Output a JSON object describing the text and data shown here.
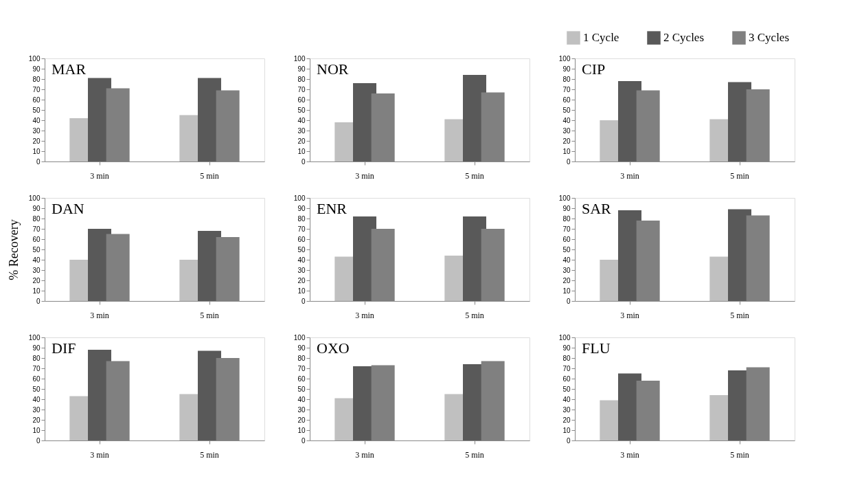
{
  "chart_data": [
    {
      "type": "bar",
      "title": "MAR",
      "categories": [
        "3 min",
        "5 min"
      ],
      "ylim": [
        0,
        100
      ],
      "yticks": [
        0,
        10,
        20,
        30,
        40,
        50,
        60,
        70,
        80,
        90,
        100
      ],
      "grid": false,
      "legend": "top right",
      "series": [
        {
          "name": "1 Cycle",
          "color": "#c0c0c0",
          "values": [
            42,
            45
          ]
        },
        {
          "name": "2 Cycles",
          "color": "#595959",
          "values": [
            81,
            81
          ]
        },
        {
          "name": "3 Cycles",
          "color": "#808080",
          "values": [
            71,
            69
          ]
        }
      ]
    },
    {
      "type": "bar",
      "title": "NOR",
      "categories": [
        "3 min",
        "5 min"
      ],
      "ylim": [
        0,
        100
      ],
      "yticks": [
        0,
        10,
        20,
        30,
        40,
        50,
        60,
        70,
        80,
        90,
        100
      ],
      "grid": false,
      "series": [
        {
          "color": "#c0c0c0",
          "values": [
            38,
            41
          ]
        },
        {
          "color": "#595959",
          "values": [
            76,
            84
          ]
        },
        {
          "color": "#808080",
          "values": [
            66,
            67
          ]
        }
      ]
    },
    {
      "type": "bar",
      "title": "CIP",
      "categories": [
        "3 min",
        "5 min"
      ],
      "ylim": [
        0,
        100
      ],
      "yticks": [
        0,
        10,
        20,
        30,
        40,
        50,
        60,
        70,
        80,
        90,
        100
      ],
      "grid": false,
      "series": [
        {
          "color": "#c0c0c0",
          "values": [
            40,
            41
          ]
        },
        {
          "color": "#595959",
          "values": [
            78,
            77
          ]
        },
        {
          "color": "#808080",
          "values": [
            69,
            70
          ]
        }
      ]
    },
    {
      "type": "bar",
      "title": "DAN",
      "ylabel": "% Recovery",
      "categories": [
        "3 min",
        "5 min"
      ],
      "ylim": [
        0,
        100
      ],
      "yticks": [
        0,
        10,
        20,
        30,
        40,
        50,
        60,
        70,
        80,
        90,
        100
      ],
      "grid": false,
      "series": [
        {
          "color": "#c0c0c0",
          "values": [
            40,
            40
          ]
        },
        {
          "color": "#595959",
          "values": [
            70,
            68
          ]
        },
        {
          "color": "#808080",
          "values": [
            65,
            62
          ]
        }
      ]
    },
    {
      "type": "bar",
      "title": "ENR",
      "categories": [
        "3 min",
        "5 min"
      ],
      "ylim": [
        0,
        100
      ],
      "yticks": [
        0,
        10,
        20,
        30,
        40,
        50,
        60,
        70,
        80,
        90,
        100
      ],
      "grid": false,
      "series": [
        {
          "color": "#c0c0c0",
          "values": [
            43,
            44
          ]
        },
        {
          "color": "#595959",
          "values": [
            82,
            82
          ]
        },
        {
          "color": "#808080",
          "values": [
            70,
            70
          ]
        }
      ]
    },
    {
      "type": "bar",
      "title": "SAR",
      "categories": [
        "3 min",
        "5 min"
      ],
      "ylim": [
        0,
        100
      ],
      "yticks": [
        0,
        10,
        20,
        30,
        40,
        50,
        60,
        70,
        80,
        90,
        100
      ],
      "grid": false,
      "series": [
        {
          "color": "#c0c0c0",
          "values": [
            40,
            43
          ]
        },
        {
          "color": "#595959",
          "values": [
            88,
            89
          ]
        },
        {
          "color": "#808080",
          "values": [
            78,
            83
          ]
        }
      ]
    },
    {
      "type": "bar",
      "title": "DIF",
      "categories": [
        "3 min",
        "5 min"
      ],
      "ylim": [
        0,
        100
      ],
      "yticks": [
        0,
        10,
        20,
        30,
        40,
        50,
        60,
        70,
        80,
        90,
        100
      ],
      "grid": false,
      "series": [
        {
          "color": "#c0c0c0",
          "values": [
            43,
            45
          ]
        },
        {
          "color": "#595959",
          "values": [
            88,
            87
          ]
        },
        {
          "color": "#808080",
          "values": [
            77,
            80
          ]
        }
      ]
    },
    {
      "type": "bar",
      "title": "OXO",
      "categories": [
        "3 min",
        "5 min"
      ],
      "ylim": [
        0,
        100
      ],
      "yticks": [
        0,
        10,
        20,
        30,
        40,
        50,
        60,
        70,
        80,
        90,
        100
      ],
      "grid": false,
      "series": [
        {
          "color": "#c0c0c0",
          "values": [
            41,
            45
          ]
        },
        {
          "color": "#595959",
          "values": [
            72,
            74
          ]
        },
        {
          "color": "#808080",
          "values": [
            73,
            77
          ]
        }
      ]
    },
    {
      "type": "bar",
      "title": "FLU",
      "categories": [
        "3 min",
        "5 min"
      ],
      "ylim": [
        0,
        100
      ],
      "yticks": [
        0,
        10,
        20,
        30,
        40,
        50,
        60,
        70,
        80,
        90,
        100
      ],
      "grid": false,
      "series": [
        {
          "color": "#c0c0c0",
          "values": [
            39,
            44
          ]
        },
        {
          "color": "#595959",
          "values": [
            65,
            68
          ]
        },
        {
          "color": "#808080",
          "values": [
            58,
            71
          ]
        }
      ]
    }
  ]
}
